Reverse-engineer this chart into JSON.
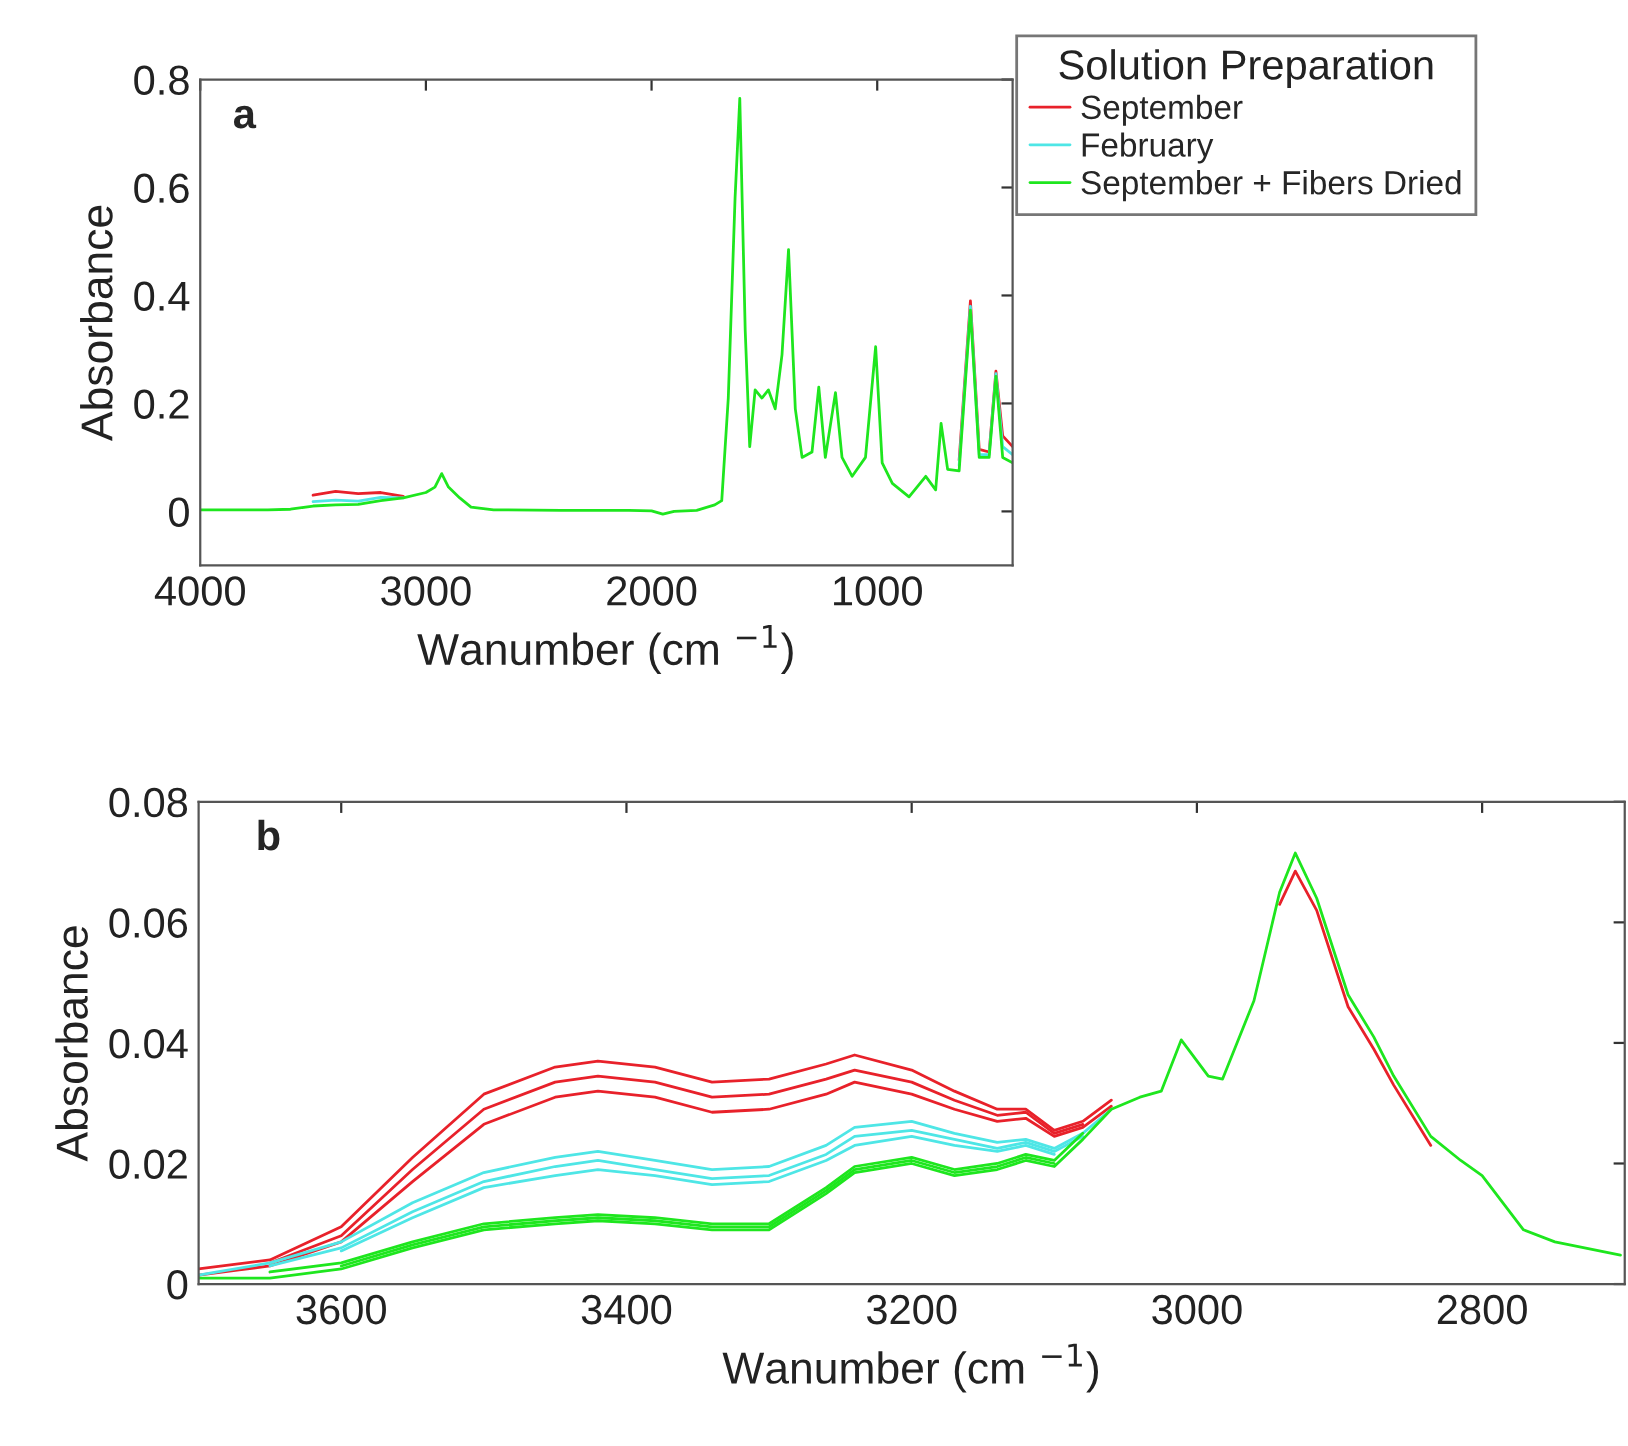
{
  "chart_data": [
    {
      "type": "line",
      "xlabel": "Wanumber (cm $^{−1}$)",
      "ylabel": "Absorbance",
      "legend_title": "Solution Preparation",
      "legend": "right",
      "annotations": [
        "a"
      ],
      "xlim": [
        4000,
        400
      ],
      "xticks": [
        4000,
        3000,
        2000,
        1000
      ],
      "ylim": [
        -0.1,
        0.8
      ],
      "yticks": [
        0,
        0.2,
        0.4,
        0.6,
        0.8
      ],
      "grid": false,
      "x": [
        4000,
        3700,
        3600,
        3500,
        3400,
        3300,
        3200,
        3100,
        3000,
        2960,
        2930,
        2900,
        2850,
        2800,
        2700,
        2400,
        2100,
        2000,
        1950,
        1900,
        1800,
        1720,
        1689,
        1660,
        1630,
        1609,
        1585,
        1565,
        1541,
        1511,
        1482,
        1452,
        1422,
        1393,
        1363,
        1333,
        1289,
        1259,
        1230,
        1185,
        1156,
        1111,
        1052,
        1007,
        978,
        933,
        859,
        785,
        741,
        717,
        688,
        637,
        587,
        548,
        504,
        474,
        444,
        400
      ],
      "series": [
        {
          "name": "September",
          "color": "#e8212a",
          "values": [
            null,
            null,
            null,
            0.03,
            0.037,
            0.033,
            0.035,
            0.028,
            null,
            null,
            null,
            null,
            null,
            null,
            null,
            null,
            null,
            null,
            null,
            null,
            null,
            null,
            null,
            null,
            null,
            null,
            null,
            null,
            null,
            null,
            null,
            null,
            null,
            null,
            null,
            null,
            null,
            null,
            null,
            null,
            null,
            null,
            null,
            null,
            null,
            null,
            null,
            null,
            null,
            null,
            null,
            0.095,
            0.39,
            0.115,
            0.11,
            0.26,
            0.14,
            0.12
          ]
        },
        {
          "name": "February",
          "color": "#4ee6e6",
          "values": [
            null,
            null,
            null,
            0.018,
            0.021,
            0.019,
            0.026,
            0.025,
            null,
            null,
            null,
            null,
            null,
            null,
            null,
            null,
            null,
            null,
            null,
            null,
            null,
            null,
            null,
            null,
            null,
            null,
            null,
            null,
            null,
            null,
            null,
            null,
            null,
            null,
            null,
            null,
            null,
            null,
            null,
            null,
            null,
            null,
            null,
            null,
            null,
            null,
            null,
            null,
            null,
            null,
            null,
            0.085,
            0.38,
            0.105,
            0.105,
            0.255,
            0.12,
            0.105
          ]
        },
        {
          "name": "September + Fibers Dried",
          "color": "#1ee61e",
          "values": [
            0.003,
            0.003,
            0.004,
            0.01,
            0.012,
            0.013,
            0.02,
            0.025,
            0.035,
            0.045,
            0.07,
            0.045,
            0.025,
            0.008,
            0.003,
            0.002,
            0.002,
            0.001,
            -0.005,
            0.0,
            0.002,
            0.012,
            0.02,
            0.21,
            0.58,
            0.765,
            0.335,
            0.12,
            0.225,
            0.21,
            0.225,
            0.19,
            0.29,
            0.485,
            0.19,
            0.1,
            0.11,
            0.23,
            0.1,
            0.22,
            0.1,
            0.065,
            0.1,
            0.305,
            0.09,
            0.052,
            0.027,
            0.065,
            0.04,
            0.163,
            0.078,
            0.075,
            0.373,
            0.1,
            0.1,
            0.25,
            0.1,
            0.09
          ]
        }
      ]
    },
    {
      "type": "line",
      "xlabel": "Wanumber (cm $^{−1}$)",
      "ylabel": "Absorbance",
      "annotations": [
        "b"
      ],
      "xlim": [
        3700,
        2700
      ],
      "xticks": [
        3600,
        3400,
        3200,
        3000,
        2800
      ],
      "ylim": [
        0,
        0.08
      ],
      "yticks": [
        0,
        0.02,
        0.04,
        0.06,
        0.08
      ],
      "grid": false,
      "legend": false,
      "x": [
        3700,
        3650,
        3600,
        3550,
        3500,
        3450,
        3420,
        3380,
        3340,
        3300,
        3260,
        3240,
        3200,
        3170,
        3140,
        3120,
        3100,
        3080,
        3060,
        3040,
        3025,
        3011,
        2992,
        2982,
        2960,
        2942,
        2931,
        2916,
        2894,
        2876,
        2862,
        2836,
        2815,
        2800,
        2771,
        2749,
        2703
      ],
      "series": [
        {
          "color": "#e8212a",
          "values": [
            0.0025,
            0.004,
            0.0095,
            0.021,
            0.0315,
            0.036,
            0.037,
            0.036,
            0.0335,
            0.034,
            0.0365,
            0.038,
            0.0355,
            0.032,
            0.029,
            0.029,
            0.0255,
            0.027,
            0.0305,
            null,
            null,
            null,
            null,
            null,
            null,
            null,
            null,
            null,
            null,
            null,
            null,
            null,
            null,
            null,
            null,
            null,
            null
          ]
        },
        {
          "color": "#e8212a",
          "values": [
            null,
            0.0035,
            0.008,
            0.019,
            0.029,
            0.0335,
            0.0345,
            0.0335,
            0.031,
            0.0315,
            0.034,
            0.0355,
            0.0335,
            0.0305,
            0.028,
            0.0285,
            0.025,
            0.0265,
            null,
            null,
            null,
            null,
            null,
            null,
            null,
            null,
            null,
            null,
            null,
            null,
            null,
            null,
            null,
            null,
            null,
            null,
            null
          ]
        },
        {
          "color": "#e8212a",
          "values": [
            0.0015,
            0.003,
            0.007,
            0.017,
            0.0265,
            0.031,
            0.032,
            0.031,
            0.0285,
            0.029,
            0.0315,
            0.0335,
            0.0315,
            0.029,
            0.027,
            0.0275,
            0.0245,
            0.026,
            0.0295,
            null,
            null,
            null,
            null,
            null,
            null,
            0.063,
            0.0685,
            0.062,
            0.046,
            0.039,
            0.033,
            0.023,
            null,
            null,
            null,
            null,
            null
          ]
        },
        {
          "color": "#4ee6e6",
          "values": [
            0.0015,
            0.0035,
            0.007,
            0.0135,
            0.0185,
            0.021,
            0.022,
            0.0205,
            0.019,
            0.0195,
            0.023,
            0.026,
            0.027,
            0.025,
            0.0235,
            0.024,
            0.0225,
            0.025,
            0.029,
            null,
            null,
            null,
            null,
            null,
            null,
            null,
            null,
            null,
            null,
            null,
            null,
            null,
            null,
            null,
            null,
            null,
            null
          ]
        },
        {
          "color": "#4ee6e6",
          "values": [
            null,
            0.003,
            0.006,
            0.012,
            0.017,
            0.0195,
            0.0205,
            0.019,
            0.0175,
            0.018,
            0.0215,
            0.0245,
            0.0255,
            0.024,
            0.0225,
            0.0235,
            0.022,
            0.0245,
            null,
            null,
            null,
            null,
            null,
            null,
            null,
            null,
            null,
            null,
            null,
            null,
            null,
            null,
            null,
            null,
            null,
            null,
            null
          ]
        },
        {
          "color": "#4ee6e6",
          "values": [
            null,
            null,
            0.0055,
            0.011,
            0.016,
            0.018,
            0.019,
            0.018,
            0.0165,
            0.017,
            0.0205,
            0.023,
            0.0245,
            0.023,
            0.022,
            0.023,
            0.0215,
            null,
            null,
            null,
            null,
            null,
            null,
            null,
            null,
            null,
            null,
            null,
            null,
            null,
            null,
            null,
            null,
            null,
            null,
            null,
            null
          ]
        },
        {
          "color": "#1ee61e",
          "values": [
            null,
            0.002,
            0.0035,
            0.007,
            0.01,
            0.011,
            0.0115,
            0.011,
            0.01,
            0.01,
            0.016,
            0.0195,
            0.021,
            0.019,
            0.02,
            0.0215,
            0.0205,
            0.025,
            null,
            null,
            null,
            null,
            null,
            null,
            null,
            null,
            null,
            null,
            null,
            null,
            null,
            null,
            null,
            null,
            null,
            null,
            null
          ]
        },
        {
          "color": "#1ee61e",
          "values": [
            null,
            null,
            0.003,
            0.0065,
            0.0095,
            0.0105,
            0.011,
            0.0105,
            0.0095,
            0.0095,
            0.0155,
            0.019,
            0.0205,
            0.0185,
            0.0195,
            0.021,
            0.02,
            null,
            null,
            null,
            null,
            null,
            null,
            null,
            null,
            null,
            null,
            null,
            null,
            null,
            null,
            null,
            null,
            null,
            null,
            null,
            null
          ]
        },
        {
          "color": "#1ee61e",
          "values": [
            0.001,
            0.001,
            0.0025,
            0.006,
            0.009,
            0.01,
            0.0105,
            0.01,
            0.009,
            0.009,
            0.015,
            0.0185,
            0.02,
            0.018,
            0.019,
            0.0205,
            0.0195,
            0.024,
            0.029,
            0.031,
            0.032,
            0.0405,
            0.0345,
            0.034,
            0.047,
            0.065,
            0.0715,
            0.064,
            0.048,
            0.041,
            0.0345,
            0.0245,
            0.0205,
            0.018,
            0.009,
            0.007,
            0.0048
          ]
        }
      ]
    }
  ]
}
